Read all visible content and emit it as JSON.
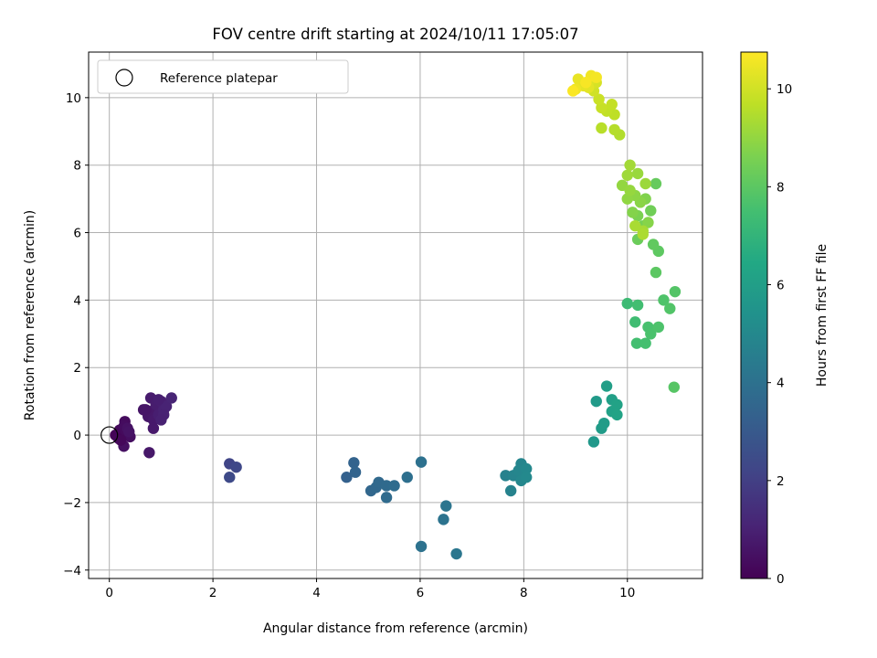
{
  "chart_data": {
    "type": "scatter",
    "title": "FOV centre drift starting at 2024/10/11 17:05:07",
    "xlabel": "Angular distance from reference (arcmin)",
    "ylabel": "Rotation from reference (arcmin)",
    "colorbar_label": "Hours from first FF file",
    "xlim": [
      -0.4,
      11.45
    ],
    "ylim": [
      -4.25,
      11.35
    ],
    "x_ticks": [
      0,
      2,
      4,
      6,
      8,
      10
    ],
    "y_ticks": [
      -4,
      -2,
      0,
      2,
      4,
      6,
      8,
      10
    ],
    "colorbar_range": [
      0,
      10.75
    ],
    "colorbar_ticks": [
      0,
      2,
      4,
      6,
      8,
      10
    ],
    "colormap": "viridis",
    "grid": true,
    "legend_position": "top-left",
    "legend": [
      {
        "label": "Reference platepar",
        "marker": "open-circle"
      }
    ],
    "reference_point": {
      "x": 0,
      "y": 0
    },
    "points": [
      [
        0.12,
        0.0,
        0.1
      ],
      [
        0.2,
        0.15,
        0.2
      ],
      [
        0.25,
        0.05,
        0.25
      ],
      [
        0.18,
        -0.1,
        0.15
      ],
      [
        0.3,
        0.4,
        0.3
      ],
      [
        0.28,
        0.25,
        0.35
      ],
      [
        0.32,
        0.12,
        0.3
      ],
      [
        0.4,
        -0.05,
        0.4
      ],
      [
        0.28,
        -0.33,
        0.45
      ],
      [
        0.35,
        0.2,
        0.5
      ],
      [
        0.38,
        0.1,
        0.55
      ],
      [
        0.22,
        -0.15,
        0.2
      ],
      [
        0.66,
        0.75,
        0.6
      ],
      [
        0.75,
        0.55,
        0.65
      ],
      [
        0.8,
        0.7,
        0.7
      ],
      [
        0.85,
        0.45,
        0.75
      ],
      [
        0.8,
        1.1,
        0.8
      ],
      [
        0.9,
        0.9,
        0.85
      ],
      [
        0.95,
        0.6,
        0.9
      ],
      [
        1.0,
        1.0,
        0.95
      ],
      [
        1.05,
        0.75,
        1.0
      ],
      [
        1.1,
        0.85,
        1.05
      ],
      [
        1.2,
        1.1,
        1.1
      ],
      [
        0.95,
        1.05,
        0.9
      ],
      [
        1.05,
        0.6,
        1.0
      ],
      [
        0.85,
        0.2,
        0.75
      ],
      [
        0.77,
        -0.52,
        0.7
      ],
      [
        0.7,
        0.75,
        0.62
      ],
      [
        1.0,
        0.45,
        0.98
      ],
      [
        2.32,
        -0.85,
        2.2
      ],
      [
        2.45,
        -0.95,
        2.3
      ],
      [
        2.32,
        -1.25,
        2.4
      ],
      [
        4.58,
        -1.25,
        3.3
      ],
      [
        4.72,
        -0.82,
        3.4
      ],
      [
        4.75,
        -1.1,
        3.45
      ],
      [
        5.05,
        -1.65,
        3.55
      ],
      [
        5.15,
        -1.55,
        3.6
      ],
      [
        5.2,
        -1.4,
        3.65
      ],
      [
        5.35,
        -1.5,
        3.7
      ],
      [
        5.35,
        -1.85,
        3.75
      ],
      [
        5.5,
        -1.5,
        3.8
      ],
      [
        5.75,
        -1.25,
        3.9
      ],
      [
        6.02,
        -0.8,
        4.0
      ],
      [
        6.02,
        -3.3,
        4.05
      ],
      [
        6.45,
        -2.5,
        4.1
      ],
      [
        6.5,
        -2.1,
        4.15
      ],
      [
        6.7,
        -3.52,
        4.2
      ],
      [
        7.65,
        -1.2,
        4.7
      ],
      [
        7.75,
        -1.65,
        4.75
      ],
      [
        7.8,
        -1.2,
        4.8
      ],
      [
        7.95,
        -0.85,
        4.85
      ],
      [
        7.9,
        -1.05,
        4.9
      ],
      [
        7.95,
        -1.35,
        4.95
      ],
      [
        8.05,
        -1.0,
        5.0
      ],
      [
        8.05,
        -1.25,
        5.05
      ],
      [
        9.35,
        -0.2,
        5.7
      ],
      [
        9.4,
        1.0,
        5.8
      ],
      [
        9.5,
        0.2,
        5.85
      ],
      [
        9.55,
        0.35,
        5.9
      ],
      [
        9.6,
        1.45,
        6.0
      ],
      [
        9.7,
        1.05,
        6.05
      ],
      [
        9.7,
        0.7,
        6.1
      ],
      [
        9.8,
        0.9,
        6.15
      ],
      [
        9.8,
        0.6,
        6.2
      ],
      [
        10.0,
        3.9,
        7.3
      ],
      [
        10.15,
        3.35,
        7.4
      ],
      [
        10.2,
        3.85,
        7.45
      ],
      [
        10.18,
        2.72,
        7.5
      ],
      [
        10.35,
        2.72,
        7.55
      ],
      [
        10.4,
        3.2,
        7.6
      ],
      [
        10.45,
        3.0,
        7.65
      ],
      [
        10.6,
        3.2,
        7.7
      ],
      [
        10.7,
        4.0,
        7.75
      ],
      [
        10.82,
        3.75,
        7.8
      ],
      [
        10.92,
        4.25,
        7.85
      ],
      [
        10.9,
        1.42,
        7.9
      ],
      [
        10.55,
        4.82,
        8.0
      ],
      [
        10.6,
        5.45,
        8.05
      ],
      [
        10.5,
        5.65,
        8.1
      ],
      [
        10.55,
        7.45,
        8.2
      ],
      [
        10.2,
        5.8,
        8.3
      ],
      [
        10.45,
        6.65,
        8.4
      ],
      [
        10.3,
        6.2,
        8.5
      ],
      [
        10.2,
        6.5,
        8.6
      ],
      [
        10.35,
        7.0,
        8.7
      ],
      [
        10.1,
        6.6,
        8.75
      ],
      [
        10.4,
        6.3,
        8.8
      ],
      [
        10.25,
        6.9,
        8.85
      ],
      [
        10.15,
        7.1,
        8.9
      ],
      [
        10.0,
        7.0,
        8.95
      ],
      [
        9.9,
        7.4,
        9.0
      ],
      [
        10.05,
        7.25,
        9.05
      ],
      [
        10.2,
        7.75,
        9.1
      ],
      [
        10.35,
        7.45,
        9.15
      ],
      [
        10.0,
        7.7,
        9.2
      ],
      [
        10.05,
        8.0,
        9.25
      ],
      [
        10.3,
        6.05,
        9.3
      ],
      [
        10.15,
        6.2,
        9.35
      ],
      [
        10.3,
        5.95,
        9.4
      ],
      [
        9.85,
        8.9,
        9.5
      ],
      [
        9.75,
        9.05,
        9.55
      ],
      [
        9.5,
        9.1,
        9.6
      ],
      [
        9.75,
        9.5,
        9.7
      ],
      [
        9.6,
        9.6,
        9.75
      ],
      [
        9.7,
        9.8,
        9.8
      ],
      [
        9.5,
        9.7,
        9.85
      ],
      [
        9.45,
        9.95,
        9.9
      ],
      [
        9.35,
        10.2,
        10.0
      ],
      [
        9.4,
        10.45,
        10.1
      ],
      [
        9.3,
        10.55,
        10.2
      ],
      [
        9.25,
        10.3,
        10.3
      ],
      [
        9.15,
        10.35,
        10.35
      ],
      [
        9.05,
        10.55,
        10.4
      ],
      [
        9.0,
        10.25,
        10.5
      ],
      [
        9.3,
        10.65,
        10.55
      ],
      [
        9.4,
        10.6,
        10.6
      ],
      [
        9.2,
        10.45,
        10.65
      ],
      [
        8.95,
        10.2,
        10.7
      ]
    ]
  }
}
